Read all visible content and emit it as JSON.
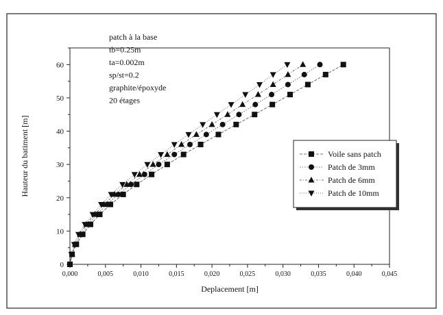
{
  "chart_data": {
    "type": "line",
    "xlabel": "Deplacement [m]",
    "ylabel": "Hauteur du batiment [m]",
    "xlim": [
      0,
      0.045
    ],
    "ylim": [
      0,
      65
    ],
    "x_ticks": [
      "0,000",
      "0,005",
      "0,010",
      "0,015",
      "0,020",
      "0,025",
      "0,030",
      "0,035",
      "0,040",
      "0,045"
    ],
    "y_ticks": [
      "0",
      "10",
      "20",
      "30",
      "40",
      "50",
      "60"
    ],
    "x_tick_values": [
      0,
      0.005,
      0.01,
      0.015,
      0.02,
      0.025,
      0.03,
      0.035,
      0.04,
      0.045
    ],
    "y_tick_values": [
      0,
      10,
      20,
      30,
      40,
      50,
      60
    ],
    "grid": false,
    "legend_position": "right",
    "annotation_lines": [
      "patch à la base",
      "tb=0.25m",
      "ta=0.002m",
      "sp/st=0.2",
      "graphite/époxyde",
      "20 étages"
    ],
    "y": [
      0,
      3,
      6,
      9,
      12,
      15,
      18,
      21,
      24,
      27,
      30,
      33,
      36,
      39,
      42,
      45,
      48,
      51,
      54,
      57,
      60
    ],
    "series": [
      {
        "name": "Voile sans patch",
        "marker": "square",
        "x": [
          0.0,
          0.0003,
          0.0009,
          0.0018,
          0.0029,
          0.0042,
          0.0057,
          0.0075,
          0.0094,
          0.0115,
          0.0137,
          0.016,
          0.0184,
          0.0209,
          0.0234,
          0.026,
          0.0285,
          0.031,
          0.0335,
          0.036,
          0.0385
        ]
      },
      {
        "name": "Patch de 3mm",
        "marker": "circle",
        "x": [
          0.0,
          0.0003,
          0.0008,
          0.0016,
          0.0026,
          0.0038,
          0.0052,
          0.0068,
          0.0086,
          0.0105,
          0.0125,
          0.0147,
          0.0169,
          0.0192,
          0.0215,
          0.0238,
          0.0261,
          0.0284,
          0.0307,
          0.033,
          0.0352
        ]
      },
      {
        "name": "Patch de 6mm",
        "marker": "triangle-up",
        "x": [
          0.0,
          0.0003,
          0.0007,
          0.0014,
          0.0023,
          0.0035,
          0.0048,
          0.0063,
          0.008,
          0.0098,
          0.0117,
          0.0137,
          0.0157,
          0.0178,
          0.02,
          0.0222,
          0.0243,
          0.0265,
          0.0286,
          0.0307,
          0.0328
        ]
      },
      {
        "name": "Patch de 10mm",
        "marker": "triangle-down",
        "x": [
          0.0,
          0.0002,
          0.0006,
          0.0012,
          0.0021,
          0.0032,
          0.0044,
          0.0058,
          0.0074,
          0.0091,
          0.0109,
          0.0128,
          0.0147,
          0.0167,
          0.0187,
          0.0207,
          0.0227,
          0.0247,
          0.0267,
          0.0286,
          0.0306
        ]
      }
    ]
  }
}
